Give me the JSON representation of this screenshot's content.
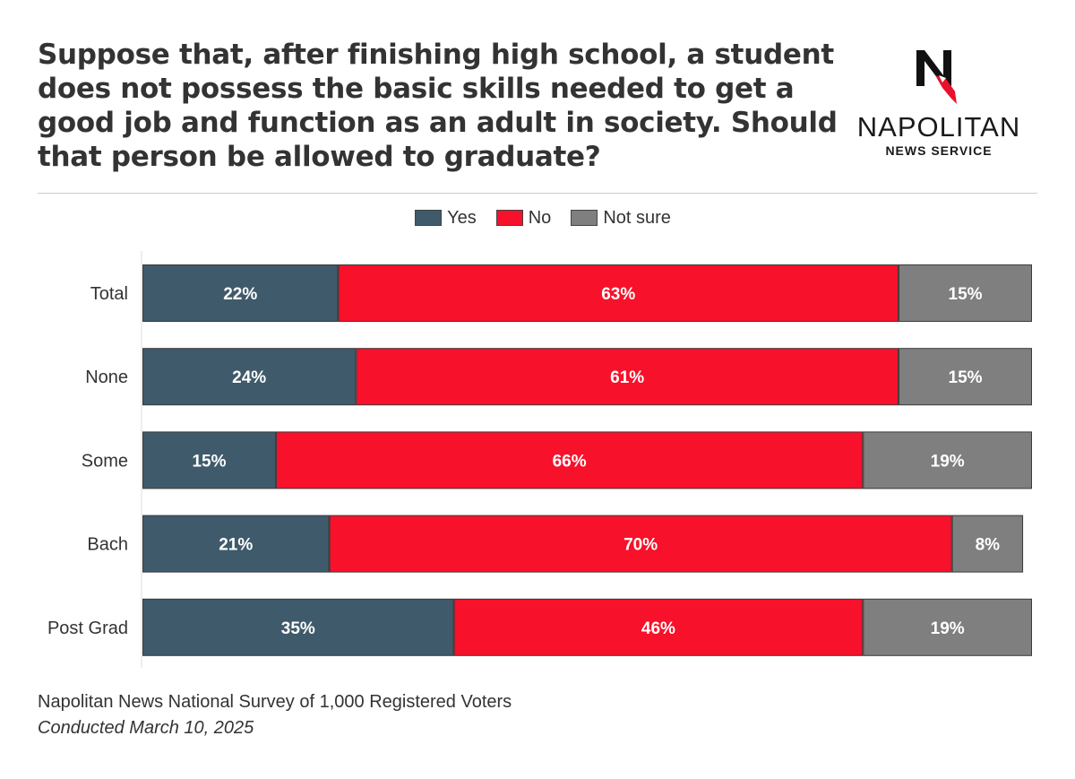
{
  "title": "Suppose that, after finishing high school, a student does not possess the basic skills needed to get a good job and function as an adult in society. Should that person be allowed to graduate?",
  "logo": {
    "name": "NAPOLITAN",
    "subtitle": "NEWS SERVICE",
    "mark_icon": "napolitan-n-eagle-icon"
  },
  "chart_data": {
    "type": "bar",
    "orientation": "horizontal",
    "stacked": true,
    "categories": [
      "Total",
      "None",
      "Some",
      "Bach",
      "Post Grad"
    ],
    "series": [
      {
        "name": "Yes",
        "color": "#3f5a6b",
        "values": [
          22,
          24,
          15,
          21,
          35
        ],
        "labels": [
          "22%",
          "24%",
          "15%",
          "21%",
          "35%"
        ]
      },
      {
        "name": "No",
        "color": "#f7112a",
        "values": [
          63,
          61,
          66,
          70,
          46
        ],
        "labels": [
          "63%",
          "61%",
          "66%",
          "70%",
          "46%"
        ]
      },
      {
        "name": "Not sure",
        "color": "#7f7f7f",
        "values": [
          15,
          15,
          19,
          8,
          19
        ],
        "labels": [
          "15%",
          "15%",
          "19%",
          "8%",
          "19%"
        ]
      }
    ],
    "xlim": [
      0,
      100
    ],
    "legend": "top-center",
    "grid": false
  },
  "footer": {
    "source": "Napolitan News National Survey of 1,000 Registered Voters",
    "date": "Conducted March 10, 2025"
  }
}
